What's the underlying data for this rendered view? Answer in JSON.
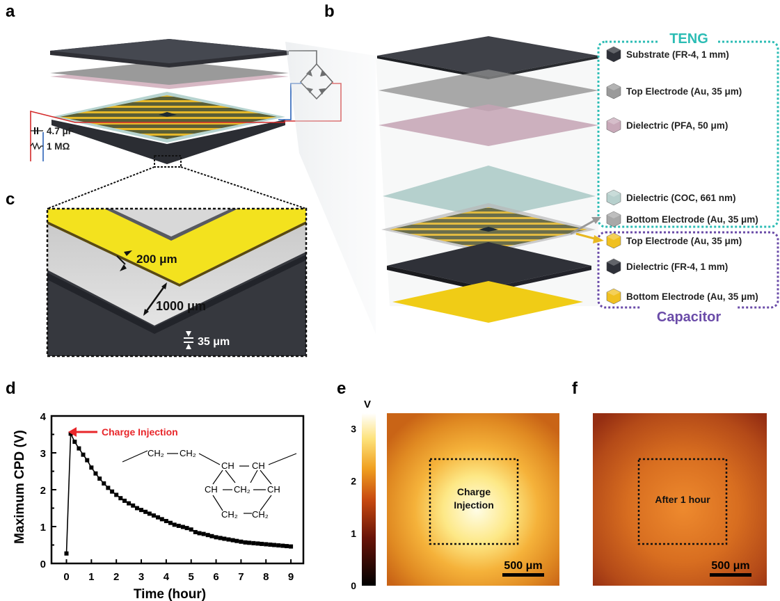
{
  "panels": {
    "a": {
      "label": "a",
      "capacitor_label": "4.7 μF",
      "resistor_label": "1 MΩ"
    },
    "b": {
      "label": "b",
      "teng_title": "TENG",
      "capacitor_title": "Capacitor",
      "layers": [
        {
          "label": "Substrate (FR-4, 1 mm)",
          "color": "#2e3038"
        },
        {
          "label": "Top Electrode (Au, 35 μm)",
          "color": "#9a9a9a"
        },
        {
          "label": "Dielectric (PFA, 50 μm)",
          "color": "#c8a8b8"
        },
        {
          "label": "Dielectric (COC, 661 nm)",
          "color": "#b7d0cd"
        },
        {
          "label": "Bottom Electrode (Au, 35 μm)",
          "color": "#a8a8a8"
        },
        {
          "label": "Top Electrode (Au, 35 μm)",
          "color": "#f0c020"
        },
        {
          "label": "Dielectric (FR-4, 1 mm)",
          "color": "#2e3038"
        },
        {
          "label": "Bottom Electrode (Au, 35 μm)",
          "color": "#f0c020"
        }
      ]
    },
    "c": {
      "label": "c",
      "dim_200": "200 μm",
      "dim_1000": "1000 μm",
      "dim_35": "35 μm"
    },
    "d": {
      "label": "d",
      "annotation": "Charge Injection"
    },
    "e": {
      "label": "e",
      "colorbar_unit": "V",
      "colorbar_ticks": [
        "0",
        "1",
        "2",
        "3"
      ],
      "colorbar_range": [
        0,
        3.3
      ],
      "box_label_line1": "Charge",
      "box_label_line2": "Injection",
      "scale_bar": "500 μm"
    },
    "f": {
      "label": "f",
      "box_label": "After 1 hour",
      "scale_bar": "500 μm"
    }
  },
  "colors": {
    "teng_box": "#2bbcb4",
    "capacitor_box": "#6a4ba8",
    "gold": "#f0c020",
    "dark_plate": "#2e3038",
    "charge_arrow": "#e8262a"
  },
  "chemical_structure": {
    "top_left": "CH₂",
    "top_right": "CH₂",
    "ring_top_left": "CH",
    "ring_top_right": "CH",
    "ring_left": "CH",
    "ring_center": "CH₂",
    "ring_right": "CH",
    "ring_bottom_left": "CH₂",
    "ring_bottom_right": "CH₂"
  },
  "chart_data": {
    "type": "scatter",
    "title": "",
    "xlabel": "Time (hour)",
    "ylabel": "Maximum CPD (V)",
    "xlim": [
      -0.6,
      9.5
    ],
    "ylim": [
      0,
      4
    ],
    "xticks": [
      0,
      1,
      2,
      3,
      4,
      5,
      6,
      7,
      8,
      9
    ],
    "yticks": [
      0,
      0.5,
      1,
      1.5,
      2,
      2.5,
      3,
      3.5,
      4
    ],
    "ytick_labels": [
      "0",
      "",
      "1",
      "",
      "2",
      "",
      "3",
      "",
      "4"
    ],
    "grid": false,
    "series": [
      {
        "x": [
          0,
          0.17,
          0.33,
          0.5,
          0.67,
          0.83,
          1.0,
          1.17,
          1.33,
          1.5,
          1.67,
          1.83,
          2.0,
          2.17,
          2.33,
          2.5,
          2.67,
          2.83,
          3.0,
          3.17,
          3.33,
          3.5,
          3.67,
          3.83,
          4.0,
          4.17,
          4.33,
          4.5,
          4.67,
          4.83,
          5.0,
          5.17,
          5.33,
          5.5,
          5.67,
          5.83,
          6.0,
          6.17,
          6.33,
          6.5,
          6.67,
          6.83,
          7.0,
          7.17,
          7.33,
          7.5,
          7.67,
          7.83,
          8.0,
          8.17,
          8.33,
          8.5,
          8.67,
          8.83,
          9.0
        ],
        "y": [
          0.27,
          3.52,
          3.3,
          3.12,
          2.95,
          2.8,
          2.6,
          2.44,
          2.3,
          2.17,
          2.05,
          1.95,
          1.86,
          1.77,
          1.7,
          1.63,
          1.57,
          1.5,
          1.45,
          1.4,
          1.35,
          1.3,
          1.25,
          1.2,
          1.15,
          1.1,
          1.05,
          1.02,
          0.99,
          0.96,
          0.92,
          0.85,
          0.82,
          0.8,
          0.77,
          0.74,
          0.71,
          0.69,
          0.67,
          0.65,
          0.63,
          0.61,
          0.59,
          0.57,
          0.56,
          0.55,
          0.54,
          0.53,
          0.52,
          0.51,
          0.5,
          0.49,
          0.48,
          0.47,
          0.46
        ]
      }
    ],
    "annotations": [
      {
        "text": "Charge Injection",
        "x": 0.17,
        "y": 3.52
      }
    ]
  }
}
